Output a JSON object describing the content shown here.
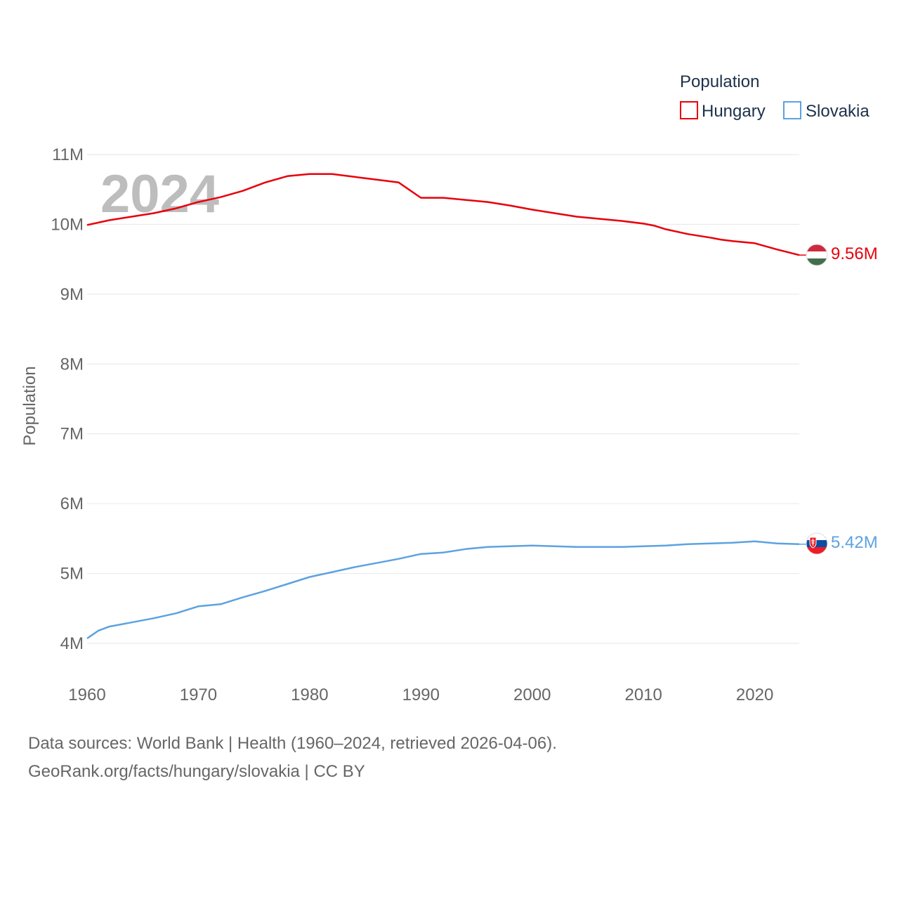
{
  "chart_data": {
    "type": "line",
    "legend_title": "Population",
    "ylabel": "Population",
    "year_overlay": "2024",
    "x_range": [
      1960,
      2024
    ],
    "ylim": [
      4000000,
      11000000
    ],
    "y_ticks": [
      {
        "value": 4000000,
        "label": "4M"
      },
      {
        "value": 5000000,
        "label": "5M"
      },
      {
        "value": 6000000,
        "label": "6M"
      },
      {
        "value": 7000000,
        "label": "7M"
      },
      {
        "value": 8000000,
        "label": "8M"
      },
      {
        "value": 9000000,
        "label": "9M"
      },
      {
        "value": 10000000,
        "label": "10M"
      },
      {
        "value": 11000000,
        "label": "11M"
      }
    ],
    "x_ticks": [
      {
        "value": 1960,
        "label": "1960"
      },
      {
        "value": 1970,
        "label": "1970"
      },
      {
        "value": 1980,
        "label": "1980"
      },
      {
        "value": 1990,
        "label": "1990"
      },
      {
        "value": 2000,
        "label": "2000"
      },
      {
        "value": 2010,
        "label": "2010"
      },
      {
        "value": 2020,
        "label": "2020"
      }
    ],
    "series": [
      {
        "name": "Hungary",
        "color": "#e8000b",
        "end_label": "9.56M",
        "flag": "hungary-flag",
        "points": [
          [
            1960,
            9990000
          ],
          [
            1962,
            10060000
          ],
          [
            1964,
            10110000
          ],
          [
            1966,
            10160000
          ],
          [
            1968,
            10230000
          ],
          [
            1970,
            10320000
          ],
          [
            1972,
            10390000
          ],
          [
            1974,
            10480000
          ],
          [
            1976,
            10600000
          ],
          [
            1978,
            10690000
          ],
          [
            1980,
            10720000
          ],
          [
            1982,
            10720000
          ],
          [
            1984,
            10680000
          ],
          [
            1986,
            10640000
          ],
          [
            1988,
            10600000
          ],
          [
            1990,
            10380000
          ],
          [
            1992,
            10380000
          ],
          [
            1994,
            10350000
          ],
          [
            1996,
            10320000
          ],
          [
            1998,
            10270000
          ],
          [
            2000,
            10210000
          ],
          [
            2002,
            10160000
          ],
          [
            2004,
            10110000
          ],
          [
            2006,
            10080000
          ],
          [
            2008,
            10050000
          ],
          [
            2010,
            10010000
          ],
          [
            2011,
            9980000
          ],
          [
            2012,
            9930000
          ],
          [
            2014,
            9860000
          ],
          [
            2016,
            9810000
          ],
          [
            2017,
            9780000
          ],
          [
            2018,
            9760000
          ],
          [
            2020,
            9730000
          ],
          [
            2022,
            9640000
          ],
          [
            2023,
            9600000
          ],
          [
            2024,
            9560000
          ]
        ]
      },
      {
        "name": "Slovakia",
        "color": "#5da2e0",
        "end_label": "5.42M",
        "flag": "slovakia-flag",
        "points": [
          [
            1960,
            4070000
          ],
          [
            1961,
            4180000
          ],
          [
            1962,
            4240000
          ],
          [
            1964,
            4300000
          ],
          [
            1966,
            4360000
          ],
          [
            1968,
            4430000
          ],
          [
            1970,
            4530000
          ],
          [
            1972,
            4560000
          ],
          [
            1974,
            4660000
          ],
          [
            1976,
            4750000
          ],
          [
            1978,
            4850000
          ],
          [
            1980,
            4950000
          ],
          [
            1982,
            5020000
          ],
          [
            1984,
            5090000
          ],
          [
            1986,
            5150000
          ],
          [
            1988,
            5210000
          ],
          [
            1990,
            5280000
          ],
          [
            1992,
            5300000
          ],
          [
            1994,
            5350000
          ],
          [
            1996,
            5380000
          ],
          [
            1998,
            5390000
          ],
          [
            2000,
            5400000
          ],
          [
            2002,
            5390000
          ],
          [
            2004,
            5380000
          ],
          [
            2006,
            5380000
          ],
          [
            2008,
            5380000
          ],
          [
            2010,
            5390000
          ],
          [
            2012,
            5400000
          ],
          [
            2014,
            5420000
          ],
          [
            2016,
            5430000
          ],
          [
            2018,
            5440000
          ],
          [
            2020,
            5460000
          ],
          [
            2022,
            5430000
          ],
          [
            2024,
            5420000
          ]
        ]
      }
    ]
  },
  "footer": {
    "sources": "Data sources: World Bank | Health (1960–2024, retrieved 2026-04-06).",
    "attribution": "GeoRank.org/facts/hungary/slovakia | CC BY"
  }
}
